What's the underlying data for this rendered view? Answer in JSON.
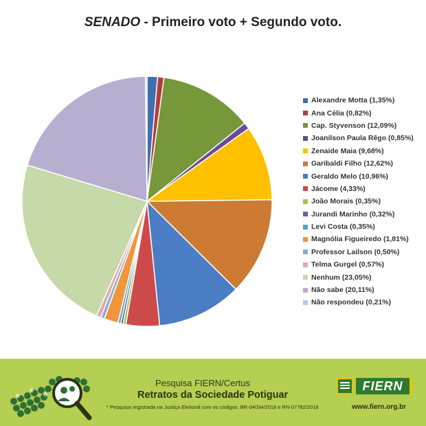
{
  "header": {
    "title_em": "SENADO",
    "title_rest": " - Primeiro voto + Segundo voto."
  },
  "chart_data": {
    "type": "pie",
    "title": "SENADO - Primeiro voto + Segundo voto.",
    "unit": "%",
    "legend_position": "right",
    "slices": [
      {
        "label": "Alexandre Motta (1,35%)",
        "value": 1.35,
        "color": "#3f6fb0"
      },
      {
        "label": "Ana Célia (0,82%)",
        "value": 0.82,
        "color": "#b53b3b"
      },
      {
        "label": "Cap. Styvenson (12,09%)",
        "value": 12.09,
        "color": "#76973a"
      },
      {
        "label": "Joanilson Paula Rêgo (0,85%)",
        "value": 0.85,
        "color": "#6a4c93"
      },
      {
        "label": "Zenaide Maia (9,68%)",
        "value": 9.68,
        "color": "#ffc000"
      },
      {
        "label": "Garibaldi Filho (12,62%)",
        "value": 12.62,
        "color": "#cc7a34"
      },
      {
        "label": "Geraldo Melo (10,96%)",
        "value": 10.96,
        "color": "#4a7dc4"
      },
      {
        "label": "Jácome (4,33%)",
        "value": 4.33,
        "color": "#cc4a4a"
      },
      {
        "label": "João Morais (0,35%)",
        "value": 0.35,
        "color": "#9cc24f"
      },
      {
        "label": "Jurandi Marinho (0,32%)",
        "value": 0.32,
        "color": "#7a5aa8"
      },
      {
        "label": "Levi Costa (0,35%)",
        "value": 0.35,
        "color": "#4aa8c8"
      },
      {
        "label": "Magnólia Figueiredo (1,81%)",
        "value": 1.81,
        "color": "#f0963a"
      },
      {
        "label": "Professor Lailson (0,50%)",
        "value": 0.5,
        "color": "#8faad6"
      },
      {
        "label": "Telma Gurgel (0,57%)",
        "value": 0.57,
        "color": "#e4a7a7"
      },
      {
        "label": "Nenhum (23,05%)",
        "value": 23.05,
        "color": "#c6d9a8"
      },
      {
        "label": "Não sabe (20,11%)",
        "value": 20.11,
        "color": "#b8aed0"
      },
      {
        "label": "Não respondeu (0,21%)",
        "value": 0.21,
        "color": "#a6cfe0"
      }
    ]
  },
  "footer": {
    "survey": "Pesquisa FIERN/Certus",
    "title": "Retratos da Sociedade Potiguar",
    "note": "* Pesquisa registrada na Justiça Eleitoral com os códigos: BR-04034/2018 e RN-07782/2018",
    "logo_text": "FIERN",
    "url": "www.fiern.org.br",
    "bg_color": "#b5cf52"
  }
}
